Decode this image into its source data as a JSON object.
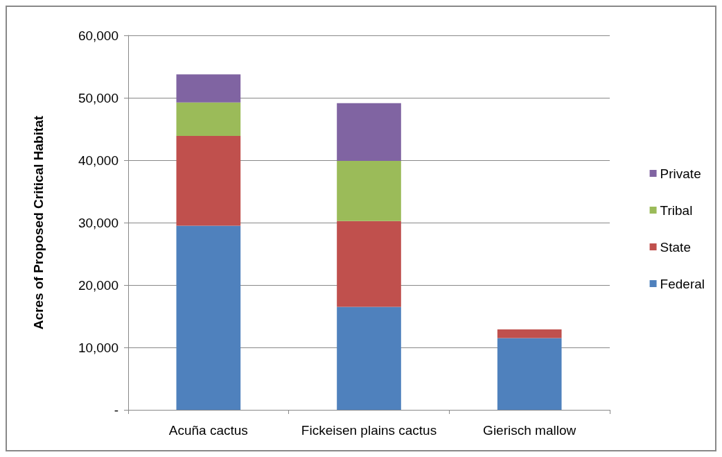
{
  "chart_data": {
    "type": "bar",
    "ylabel": "Acres of Proposed Critical Habitat",
    "categories": [
      "Acuña cactus",
      "Fickeisen plains cactus",
      "Gierisch mallow"
    ],
    "stacked": true,
    "series": [
      {
        "name": "Federal",
        "color": "#4f81bd",
        "values": [
          29500,
          16500,
          11500
        ]
      },
      {
        "name": "State",
        "color": "#c0504d",
        "values": [
          14400,
          13750,
          1400
        ]
      },
      {
        "name": "Tribal",
        "color": "#9bbb59",
        "values": [
          5350,
          9650,
          0
        ]
      },
      {
        "name": "Private",
        "color": "#8064a2",
        "values": [
          4500,
          9250,
          0
        ]
      }
    ],
    "ylim": [
      0,
      60000
    ],
    "yticks": [
      {
        "value": 0,
        "label": "-"
      },
      {
        "value": 10000,
        "label": "10,000"
      },
      {
        "value": 20000,
        "label": "20,000"
      },
      {
        "value": 30000,
        "label": "30,000"
      },
      {
        "value": 40000,
        "label": "40,000"
      },
      {
        "value": 50000,
        "label": "50,000"
      },
      {
        "value": 60000,
        "label": "60,000"
      }
    ],
    "grid": "y",
    "legend": "right"
  }
}
